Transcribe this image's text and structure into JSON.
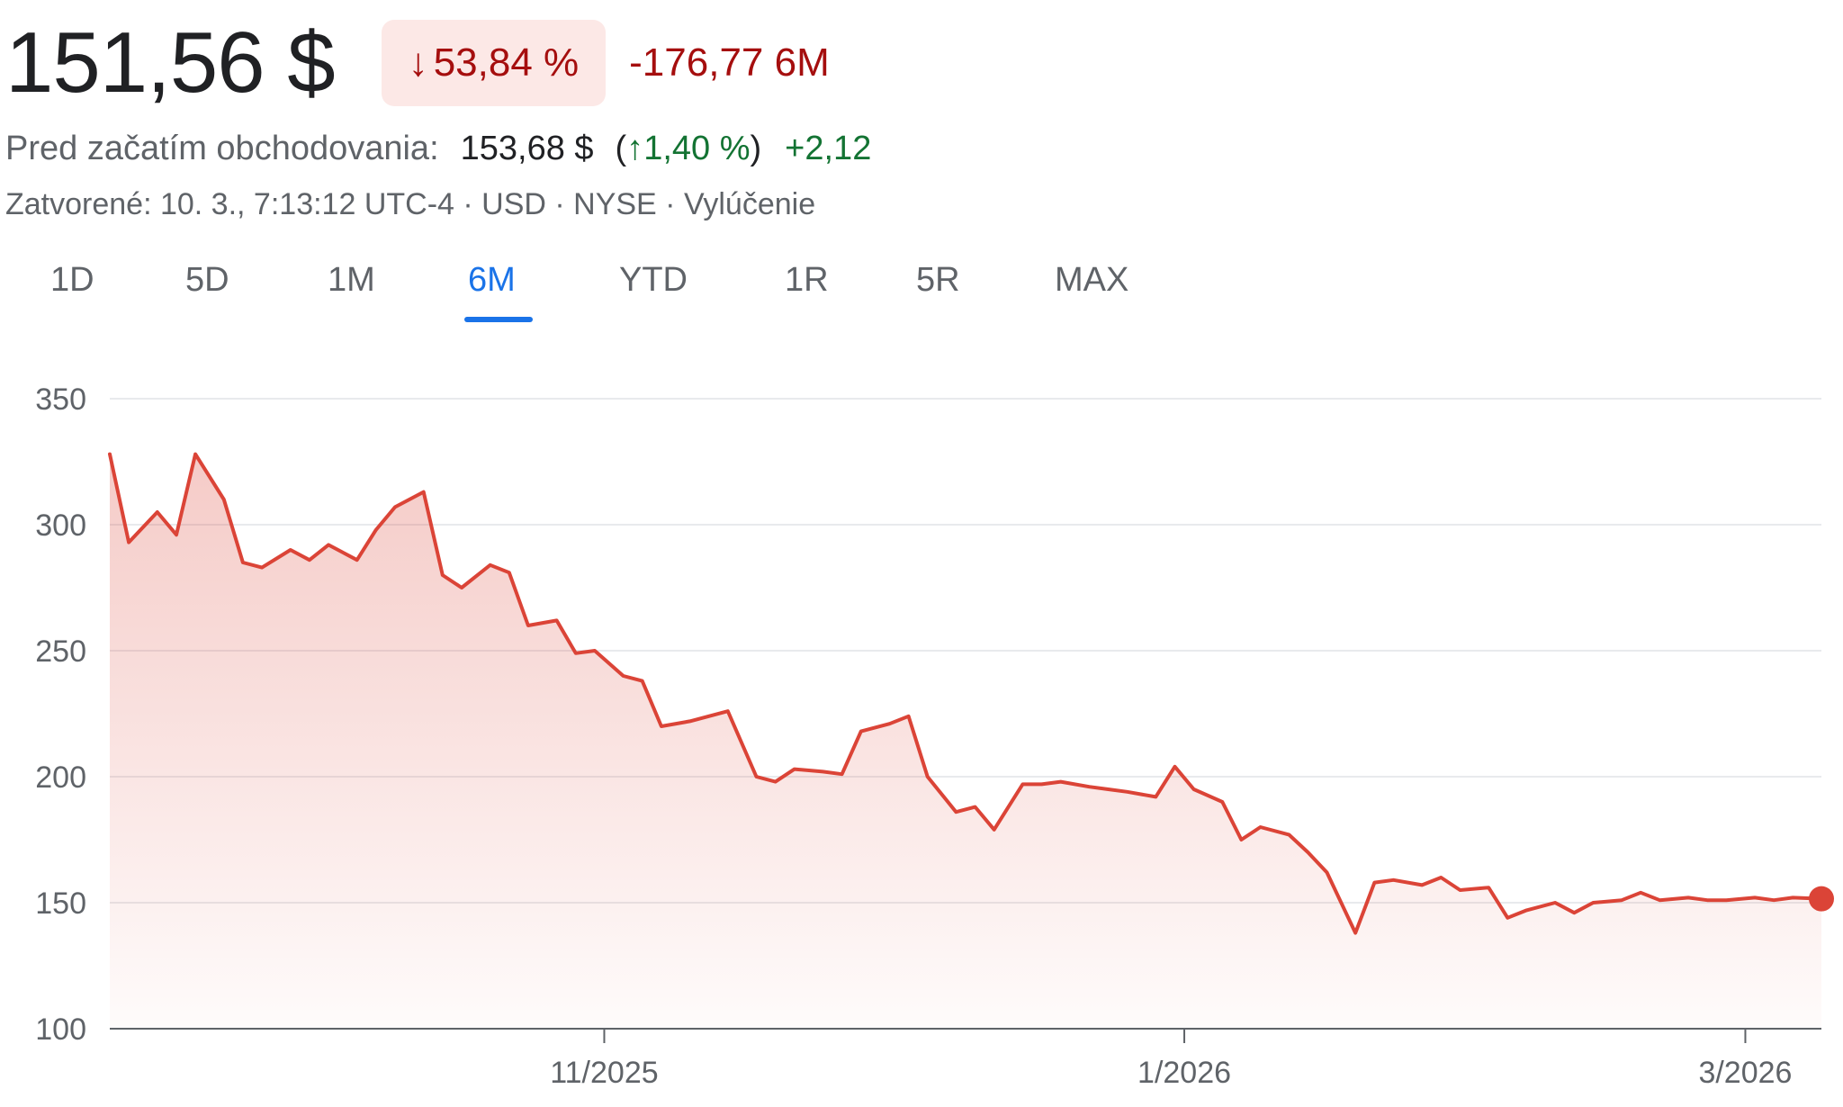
{
  "header": {
    "price": "151,56 $",
    "change_percent": "53,84 %",
    "change_absolute": "-176,77 6M",
    "change_arrow_icon": "arrow-down-icon"
  },
  "premarket": {
    "label": "Pred začatím obchodovania:",
    "price": "153,68 $",
    "percent": "1,40 %",
    "delta": "+2,12",
    "arrow_icon": "arrow-up-icon"
  },
  "meta": "Zatvorené: 10. 3., 7:13:12 UTC-4 · USD · NYSE · Vylúčenie",
  "tabs": [
    "1D",
    "5D",
    "1M",
    "6M",
    "YTD",
    "1R",
    "5R",
    "MAX"
  ],
  "active_tab": "6M",
  "colors": {
    "line": "#db4437",
    "negative": "#a50e0e",
    "negative_bg": "#fce8e6",
    "positive": "#137333",
    "accent": "#1a73e8"
  },
  "chart_data": {
    "type": "area",
    "title": "",
    "xlabel": "",
    "ylabel": "",
    "ylim": [
      100,
      350
    ],
    "yticks": [
      100,
      150,
      200,
      250,
      300,
      350
    ],
    "xlim": [
      "2025-09-10",
      "2026-03-09"
    ],
    "xticks": [
      {
        "date": "2025-11-01",
        "label": "11/2025"
      },
      {
        "date": "2026-01-01",
        "label": "1/2026"
      },
      {
        "date": "2026-03-01",
        "label": "3/2026"
      }
    ],
    "grid": true,
    "legend": "none",
    "series": [
      {
        "x": [
          "2025-09-10",
          "2025-09-12",
          "2025-09-15",
          "2025-09-17",
          "2025-09-19",
          "2025-09-22",
          "2025-09-24",
          "2025-09-26",
          "2025-09-29",
          "2025-10-01",
          "2025-10-03",
          "2025-10-06",
          "2025-10-08",
          "2025-10-10",
          "2025-10-13",
          "2025-10-15",
          "2025-10-17",
          "2025-10-20",
          "2025-10-22",
          "2025-10-24",
          "2025-10-27",
          "2025-10-29",
          "2025-10-31",
          "2025-11-03",
          "2025-11-05",
          "2025-11-07",
          "2025-11-10",
          "2025-11-12",
          "2025-11-14",
          "2025-11-17",
          "2025-11-19",
          "2025-11-21",
          "2025-11-24",
          "2025-11-26",
          "2025-11-28",
          "2025-12-01",
          "2025-12-03",
          "2025-12-05",
          "2025-12-08",
          "2025-12-10",
          "2025-12-12",
          "2025-12-15",
          "2025-12-17",
          "2025-12-19",
          "2025-12-22",
          "2025-12-24",
          "2025-12-26",
          "2025-12-29",
          "2025-12-31",
          "2026-01-02",
          "2026-01-05",
          "2026-01-07",
          "2026-01-09",
          "2026-01-12",
          "2026-01-14",
          "2026-01-16",
          "2026-01-19",
          "2026-01-21",
          "2026-01-23",
          "2026-01-26",
          "2026-01-28",
          "2026-01-30",
          "2026-02-02",
          "2026-02-04",
          "2026-02-06",
          "2026-02-09",
          "2026-02-11",
          "2026-02-13",
          "2026-02-16",
          "2026-02-18",
          "2026-02-20",
          "2026-02-23",
          "2026-02-25",
          "2026-02-27",
          "2026-03-02",
          "2026-03-04",
          "2026-03-06",
          "2026-03-09"
        ],
        "values": [
          328,
          293,
          305,
          296,
          328,
          310,
          285,
          283,
          290,
          286,
          292,
          286,
          298,
          307,
          313,
          280,
          275,
          284,
          281,
          260,
          262,
          249,
          250,
          240,
          238,
          220,
          222,
          224,
          226,
          200,
          198,
          203,
          202,
          201,
          218,
          221,
          224,
          200,
          186,
          188,
          179,
          197,
          197,
          198,
          196,
          195,
          194,
          192,
          204,
          195,
          190,
          175,
          180,
          177,
          170,
          162,
          138,
          158,
          159,
          157,
          160,
          155,
          156,
          144,
          147,
          150,
          146,
          150,
          151,
          154,
          151,
          152,
          151,
          151,
          152,
          151,
          152,
          151.56
        ]
      }
    ]
  }
}
